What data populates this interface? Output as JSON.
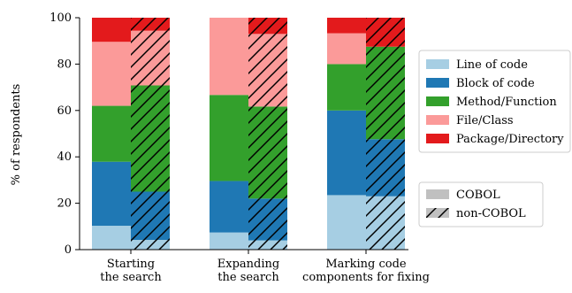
{
  "chart_data": {
    "type": "bar",
    "ylabel": "% of respondents",
    "ylim": [
      0,
      100
    ],
    "yticks": [
      0,
      20,
      40,
      60,
      80,
      100
    ],
    "categories": [
      [
        "Starting",
        "the search"
      ],
      [
        "Expanding",
        "the search"
      ],
      [
        "Marking code",
        "components for fixing"
      ]
    ],
    "groups": [
      {
        "name": "COBOL",
        "hatched": false
      },
      {
        "name": "non-COBOL",
        "hatched": true
      }
    ],
    "series": [
      {
        "name": "Line of code",
        "color": "#a6cee3",
        "COBOL": [
          10.3,
          7.4,
          23.5
        ],
        "non-COBOL": [
          4.2,
          4.0,
          23.0
        ]
      },
      {
        "name": "Block of code",
        "color": "#1f78b4",
        "COBOL": [
          27.6,
          22.2,
          36.5
        ],
        "non-COBOL": [
          20.8,
          18.0,
          24.6
        ]
      },
      {
        "name": "Method/Function",
        "color": "#33a02c",
        "COBOL": [
          24.1,
          37.1,
          20.0
        ],
        "non-COBOL": [
          45.8,
          39.7,
          39.9
        ]
      },
      {
        "name": "File/Class",
        "color": "#fb9a99",
        "COBOL": [
          27.6,
          33.3,
          13.3
        ],
        "non-COBOL": [
          23.6,
          31.3,
          0.0
        ]
      },
      {
        "name": "Package/Directory",
        "color": "#e31a1c",
        "COBOL": [
          10.4,
          0.0,
          6.7
        ],
        "non-COBOL": [
          5.6,
          7.0,
          12.5
        ]
      }
    ],
    "legend_position": "right",
    "grid": false
  }
}
